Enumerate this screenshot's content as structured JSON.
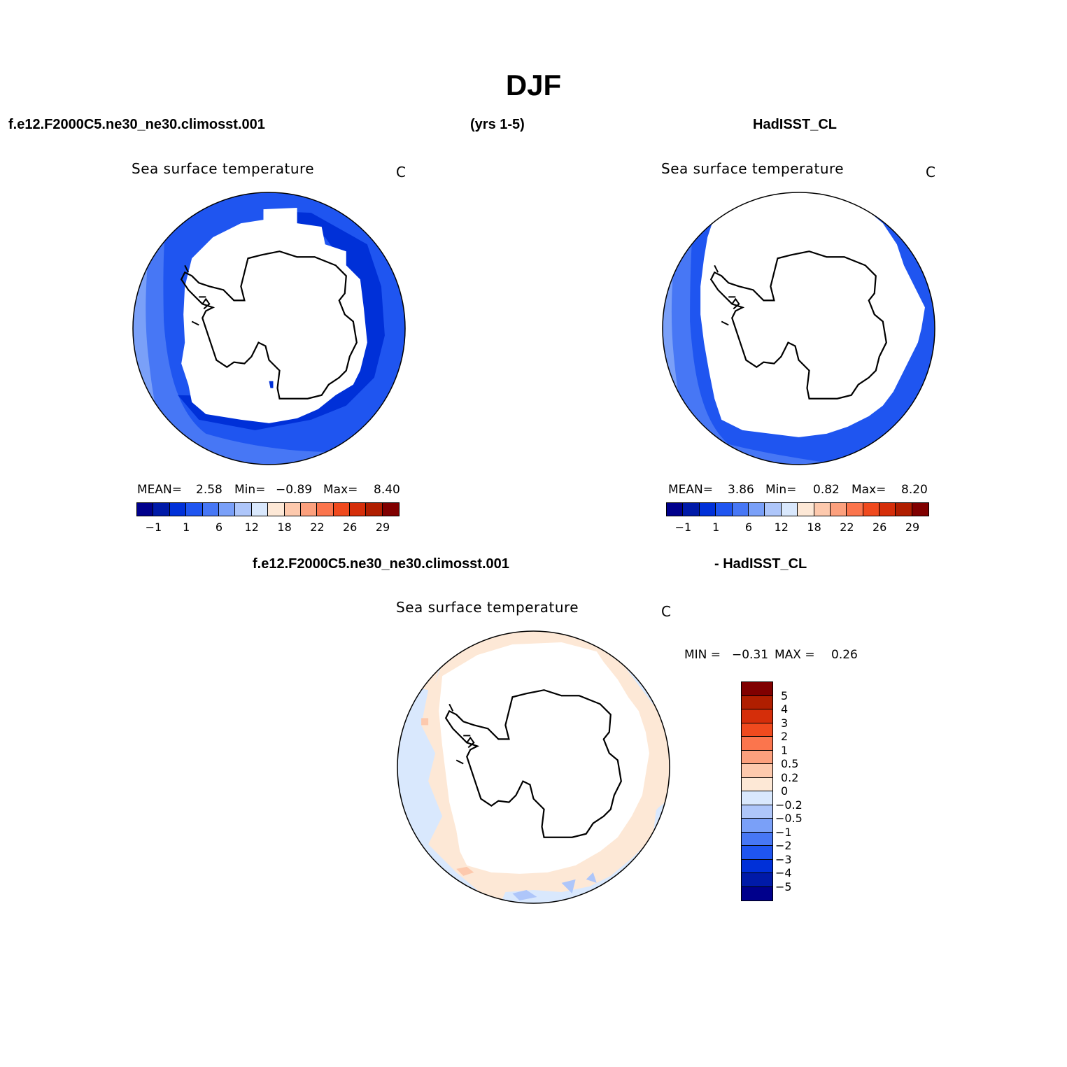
{
  "figure": {
    "title": "DJF",
    "case_name": "f.e12.F2000C5.ne30_ne30.climosst.001",
    "years": "(yrs 1-5)",
    "obs_name": "HadISST_CL",
    "diff_case_name": "f.e12.F2000C5.ne30_ne30.climosst.001",
    "diff_obs_name": "- HadISST_CL"
  },
  "panels": {
    "model": {
      "title": "Sea surface temperature",
      "units": "C",
      "mean_label": "MEAN=",
      "mean_value": "2.58",
      "min_label": "Min=",
      "min_value": "−0.89",
      "max_label": "Max=",
      "max_value": "8.40"
    },
    "obs": {
      "title": "Sea surface temperature",
      "units": "C",
      "mean_label": "MEAN=",
      "mean_value": "3.86",
      "min_label": "Min=",
      "min_value": "0.82",
      "max_label": "Max=",
      "max_value": "8.20"
    },
    "diff": {
      "title": "Sea surface temperature",
      "units": "C",
      "min_label": "MIN =",
      "min_value": "−0.31",
      "max_label": "MAX =",
      "max_value": "0.26"
    }
  },
  "colorbar_main": {
    "colors": [
      "#00008c",
      "#001aa8",
      "#0030d8",
      "#1f55f0",
      "#4777f5",
      "#7aa0f8",
      "#aec6fa",
      "#d9e8fd",
      "#fde8d6",
      "#fdc9ad",
      "#fca07d",
      "#fb754d",
      "#f04a1e",
      "#d52e0a",
      "#b01e00",
      "#800000"
    ],
    "labels": [
      "−1",
      "1",
      "6",
      "12",
      "18",
      "22",
      "26",
      "29"
    ]
  },
  "colorbar_diff": {
    "colors": [
      "#800000",
      "#b01e00",
      "#d52e0a",
      "#f04a1e",
      "#fb754d",
      "#fca07d",
      "#fdc9ad",
      "#fde8d6",
      "#d9e8fd",
      "#aec6fa",
      "#7aa0f8",
      "#4777f5",
      "#1f55f0",
      "#0030d8",
      "#001aa8",
      "#00008c"
    ],
    "labels": [
      "5",
      "4",
      "3",
      "2",
      "1",
      "0.5",
      "0.2",
      "0",
      "−0.2",
      "−0.5",
      "−1",
      "−2",
      "−3",
      "−4",
      "−5"
    ]
  },
  "map_colors": {
    "ice": "#ffffff",
    "sst_m1": "#0030d8",
    "sst_1": "#1f55f0",
    "sst_6": "#4777f5",
    "sst_12": "#7aa0f8",
    "diff_warm": "#fde8d6",
    "diff_cool": "#d9e8fd",
    "diff_cool2": "#aec6fa",
    "diff_warm2": "#fdc9ad"
  }
}
